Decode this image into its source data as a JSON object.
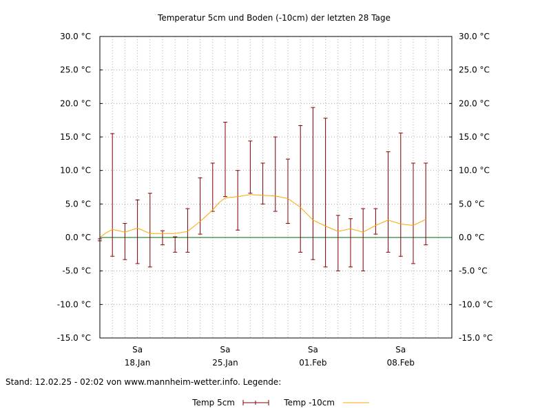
{
  "chart_data": {
    "type": "line",
    "title": "Temperatur 5cm und Boden (-10cm) der letzten 28 Tage",
    "footer": "Stand: 12.02.25 - 02:02 von www.mannheim-wetter.info. Legende:",
    "ylim": [
      -15,
      30
    ],
    "y_ticks": [
      30,
      25,
      20,
      15,
      10,
      5,
      0,
      -5,
      -10,
      -15
    ],
    "y_tick_labels": [
      "30.0 °C",
      "25.0 °C",
      "20.0 °C",
      "15.0 °C",
      "10.0 °C",
      "5.0 °C",
      "0.0 °C",
      "-5.0 °C",
      "-10.0 °C",
      "-15.0 °C"
    ],
    "x_ticks": [
      {
        "day": 3,
        "weekday": "Sa",
        "date": "18.Jan"
      },
      {
        "day": 10,
        "weekday": "Sa",
        "date": "25.Jan"
      },
      {
        "day": 17,
        "weekday": "Sa",
        "date": "01.Feb"
      },
      {
        "day": 24,
        "weekday": "Sa",
        "date": "08.Feb"
      }
    ],
    "xlim": [
      0,
      28
    ],
    "grid": true,
    "zero_line_color": "#006400",
    "series": [
      {
        "name": "Temp 5cm",
        "kind": "range",
        "color": "#800000",
        "points": [
          {
            "x": 0,
            "min": -0.5,
            "max": -0.2
          },
          {
            "x": 1,
            "min": -2.8,
            "max": 15.5
          },
          {
            "x": 2,
            "min": -3.3,
            "max": 2.1
          },
          {
            "x": 3,
            "min": -3.9,
            "max": 5.6
          },
          {
            "x": 4,
            "min": -4.4,
            "max": 6.6
          },
          {
            "x": 5,
            "min": -1.1,
            "max": 1.0
          },
          {
            "x": 6,
            "min": -2.2,
            "max": 0.1
          },
          {
            "x": 7,
            "min": -2.2,
            "max": 4.3
          },
          {
            "x": 8,
            "min": 0.5,
            "max": 8.9
          },
          {
            "x": 9,
            "min": 3.9,
            "max": 11.1
          },
          {
            "x": 10,
            "min": 6.1,
            "max": 17.2
          },
          {
            "x": 11,
            "min": 1.1,
            "max": 10.0
          },
          {
            "x": 12,
            "min": 6.6,
            "max": 14.4
          },
          {
            "x": 13,
            "min": 5.0,
            "max": 11.1
          },
          {
            "x": 14,
            "min": 3.9,
            "max": 15.0
          },
          {
            "x": 15,
            "min": 2.1,
            "max": 11.7
          },
          {
            "x": 16,
            "min": -2.2,
            "max": 16.7
          },
          {
            "x": 17,
            "min": -3.3,
            "max": 19.4
          },
          {
            "x": 18,
            "min": -4.4,
            "max": 17.8
          },
          {
            "x": 19,
            "min": -5.0,
            "max": 3.3
          },
          {
            "x": 20,
            "min": -4.4,
            "max": 2.8
          },
          {
            "x": 21,
            "min": -5.0,
            "max": 4.3
          },
          {
            "x": 22,
            "min": 0.5,
            "max": 4.3
          },
          {
            "x": 23,
            "min": -2.2,
            "max": 12.8
          },
          {
            "x": 24,
            "min": -2.8,
            "max": 15.6
          },
          {
            "x": 25,
            "min": -3.9,
            "max": 11.1
          },
          {
            "x": 26,
            "min": -1.1,
            "max": 11.1
          }
        ]
      },
      {
        "name": "Temp -10cm",
        "kind": "line",
        "color": "#ffa500",
        "x": [
          0,
          0.5,
          1,
          1.5,
          2,
          2.5,
          3,
          3.5,
          4,
          5,
          6,
          7,
          8,
          9,
          9.5,
          10,
          11,
          12,
          13,
          14,
          15,
          16,
          17,
          18,
          19,
          20,
          21,
          22,
          23,
          24,
          25,
          26
        ],
        "y": [
          0,
          0.7,
          1.2,
          1.0,
          0.8,
          1.1,
          1.4,
          1.0,
          0.6,
          0.6,
          0.6,
          0.9,
          2.4,
          4.1,
          5.2,
          5.9,
          6.1,
          6.4,
          6.3,
          6.2,
          5.8,
          4.5,
          2.6,
          1.7,
          0.9,
          1.3,
          0.8,
          1.8,
          2.6,
          2.0,
          1.8,
          2.7
        ]
      }
    ]
  }
}
